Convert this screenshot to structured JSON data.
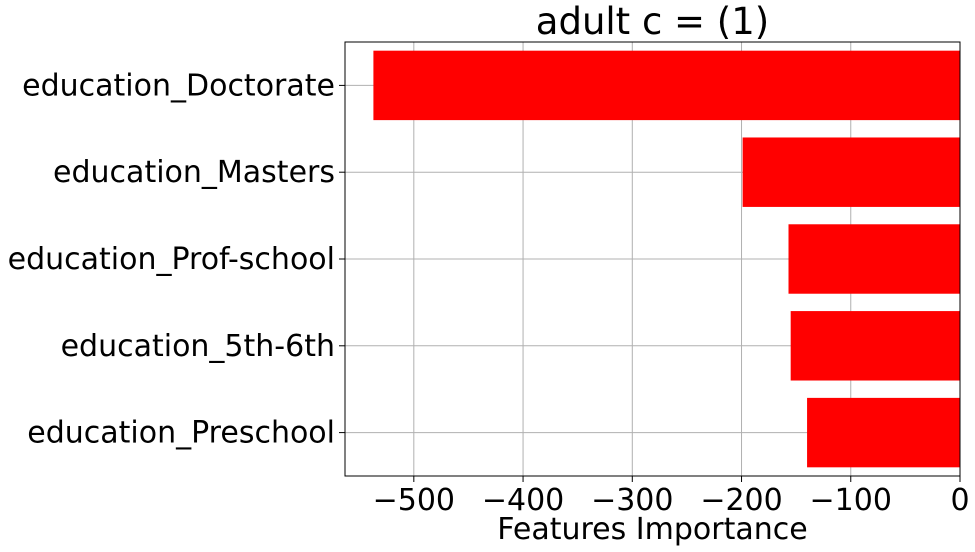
{
  "chart_data": {
    "type": "bar",
    "orientation": "horizontal",
    "title": "adult c = (1)",
    "xlabel": "Features Importance",
    "ylabel": "",
    "categories": [
      "education_Doctorate",
      "education_Masters",
      "education_Prof-school",
      "education_5th-6th",
      "education_Preschool"
    ],
    "values": [
      -537,
      -199,
      -157,
      -155,
      -140
    ],
    "xlim": [
      -563,
      0
    ],
    "xticks": [
      -500,
      -400,
      -300,
      -200,
      -100,
      0
    ],
    "xtick_labels": [
      "−500",
      "−400",
      "−300",
      "−200",
      "−100",
      "0"
    ],
    "grid": true,
    "bar_color": "#ff0000"
  }
}
